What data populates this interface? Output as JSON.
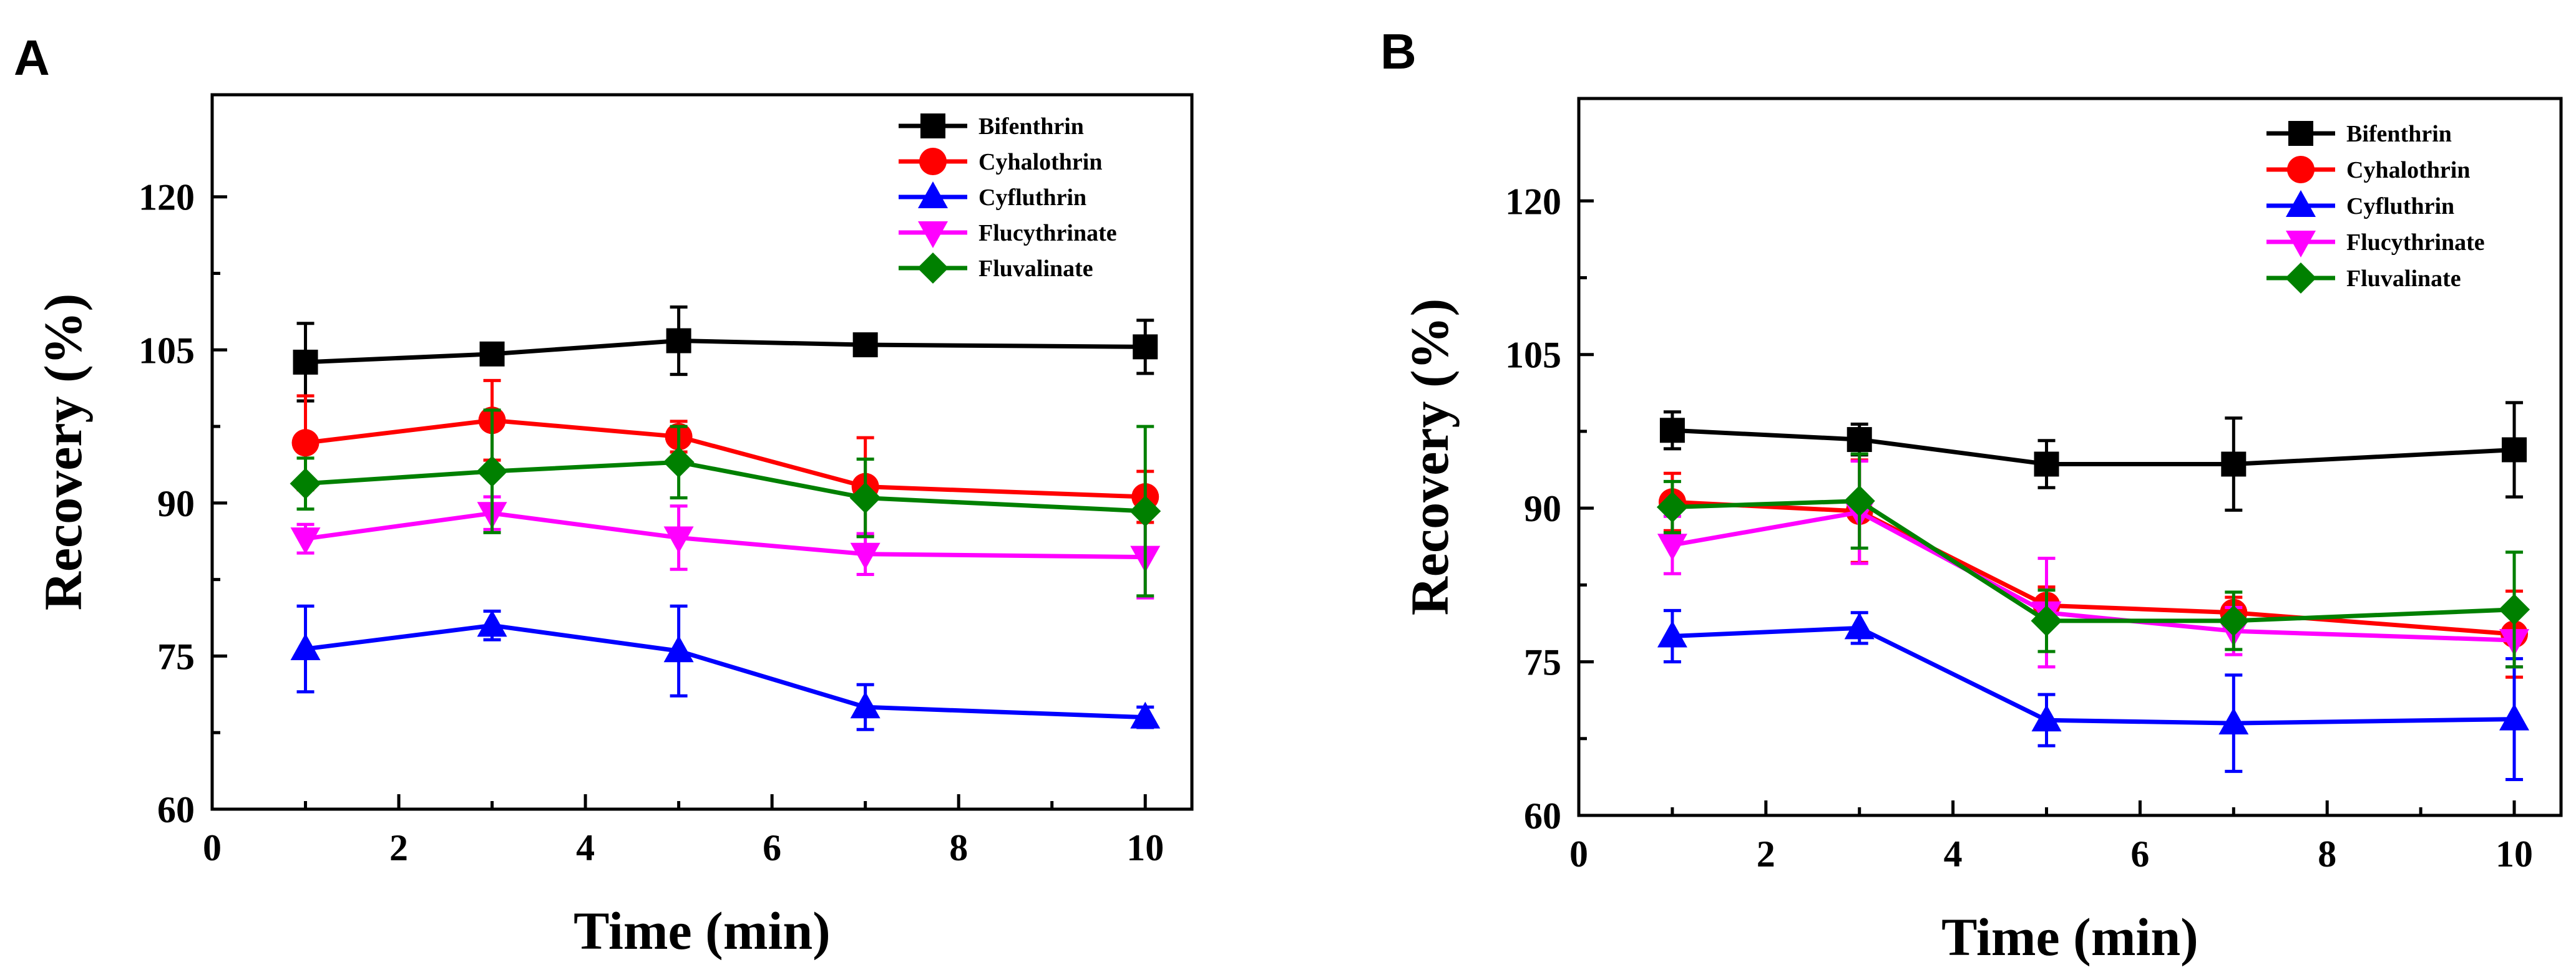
{
  "chart_data": [
    {
      "panel": "A",
      "type": "line",
      "title": "",
      "xlabel": "Time (min)",
      "ylabel": "Recovery (%)",
      "xlim": [
        0,
        10.5
      ],
      "ylim": [
        60,
        130
      ],
      "xticks": [
        0,
        2,
        4,
        6,
        8,
        10
      ],
      "yticks": [
        60,
        75,
        90,
        105,
        120
      ],
      "x": [
        1,
        3,
        5,
        7,
        10
      ],
      "legend_position": "top-right",
      "series": [
        {
          "name": "Bifenthrin",
          "color": "#000000",
          "marker": "square",
          "values": [
            103.8,
            104.6,
            105.9,
            105.5,
            105.3
          ],
          "errors": [
            3.8,
            0.8,
            3.3,
            0.6,
            2.6
          ]
        },
        {
          "name": "Cyhalothrin",
          "color": "#ff0000",
          "marker": "circle",
          "values": [
            95.9,
            98.1,
            96.5,
            91.6,
            90.6
          ],
          "errors": [
            4.6,
            3.9,
            1.5,
            4.8,
            2.5
          ]
        },
        {
          "name": "Cyfluthrin",
          "color": "#0000ff",
          "marker": "triangle-up",
          "values": [
            75.7,
            78.0,
            75.5,
            70.0,
            69.0
          ],
          "errors": [
            4.2,
            1.4,
            4.4,
            2.2,
            1.0
          ]
        },
        {
          "name": "Flucythrinate",
          "color": "#ff00ff",
          "marker": "triangle-down",
          "values": [
            86.5,
            89.0,
            86.6,
            85.0,
            84.7
          ],
          "errors": [
            1.4,
            1.6,
            3.1,
            2.0,
            4.0
          ]
        },
        {
          "name": "Fluvalinate",
          "color": "#008000",
          "marker": "diamond",
          "values": [
            91.9,
            93.1,
            94.0,
            90.5,
            89.2
          ],
          "errors": [
            2.5,
            6.0,
            3.5,
            3.8,
            8.3
          ]
        }
      ]
    },
    {
      "panel": "B",
      "type": "line",
      "title": "",
      "xlabel": "Time (min)",
      "ylabel": "Recovery (%)",
      "xlim": [
        0,
        10.5
      ],
      "ylim": [
        60,
        130
      ],
      "xticks": [
        0,
        2,
        4,
        6,
        8,
        10
      ],
      "yticks": [
        60,
        75,
        90,
        105,
        120
      ],
      "x": [
        1,
        3,
        5,
        7,
        10
      ],
      "legend_position": "top-right",
      "series": [
        {
          "name": "Bifenthrin",
          "color": "#000000",
          "marker": "square",
          "values": [
            97.6,
            96.7,
            94.3,
            94.3,
            95.7
          ],
          "errors": [
            1.8,
            1.5,
            2.3,
            4.5,
            4.6
          ]
        },
        {
          "name": "Cyhalothrin",
          "color": "#ff0000",
          "marker": "circle",
          "values": [
            90.6,
            89.7,
            80.5,
            79.8,
            77.7
          ],
          "errors": [
            2.8,
            5.0,
            1.8,
            1.5,
            4.2
          ]
        },
        {
          "name": "Cyfluthrin",
          "color": "#0000ff",
          "marker": "triangle-up",
          "values": [
            77.5,
            78.3,
            69.3,
            69.0,
            69.4
          ],
          "errors": [
            2.5,
            1.5,
            2.5,
            4.7,
            5.9
          ]
        },
        {
          "name": "Flucythrinate",
          "color": "#ff00ff",
          "marker": "triangle-down",
          "values": [
            86.4,
            89.6,
            79.8,
            78.0,
            77.1
          ],
          "errors": [
            2.8,
            5.0,
            5.3,
            2.3,
            2.6
          ]
        },
        {
          "name": "Fluvalinate",
          "color": "#008000",
          "marker": "diamond",
          "values": [
            90.1,
            90.7,
            79.0,
            79.0,
            80.1
          ],
          "errors": [
            2.5,
            4.6,
            3.0,
            2.8,
            5.6
          ]
        }
      ]
    }
  ]
}
